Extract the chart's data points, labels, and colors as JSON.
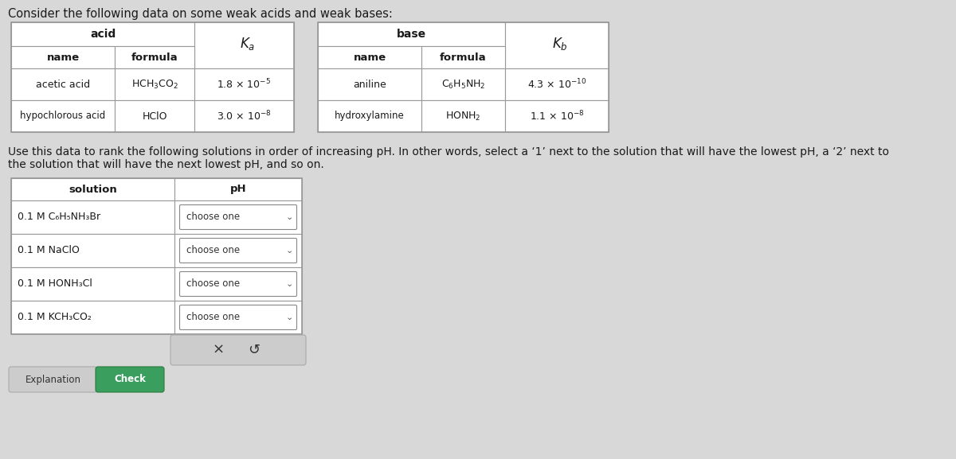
{
  "title": "Consider the following data on some weak acids and weak bases:",
  "title_fontsize": 10.5,
  "background_color": "#d8d8d8",
  "font_color": "#1a1a1a",
  "acid_table": {
    "header_span": "acid",
    "col1_header": "name",
    "col2_header": "formula",
    "col3_header": "Ka",
    "row1": [
      "acetic acid",
      "HCH₃CO₂",
      "1.8 × 10⁻⁵"
    ],
    "row2": [
      "hypochlorous acid",
      "HClO",
      "3.0 × 10⁻⁸"
    ]
  },
  "base_table": {
    "header_span": "base",
    "col1_header": "name",
    "col2_header": "formula",
    "col3_header": "Kb",
    "row1": [
      "aniline",
      "C₆H₅NH₂",
      "4.3 × 10⁻¹⁰"
    ],
    "row2": [
      "hydroxylamine",
      "HONH₂",
      "1.1 × 10⁻⁸"
    ]
  },
  "instruction_line1": "Use this data to rank the following solutions in order of increasing pH. In other words, select a ‘1’ next to the solution that will have the lowest pH, a ‘2’ next to",
  "instruction_line2": "the solution that will have the next lowest pH, and so on.",
  "instruction_fontsize": 10,
  "solution_table": {
    "col1_header": "solution",
    "col2_header": "pH",
    "rows": [
      "0.1 M C₆H₅NH₃Br",
      "0.1 M NaClO",
      "0.1 M HONH₃Cl",
      "0.1 M KCH₃CO₂"
    ]
  },
  "border_color": "#999999",
  "check_button_color": "#3a9e5f",
  "button_bg": "#cccccc"
}
